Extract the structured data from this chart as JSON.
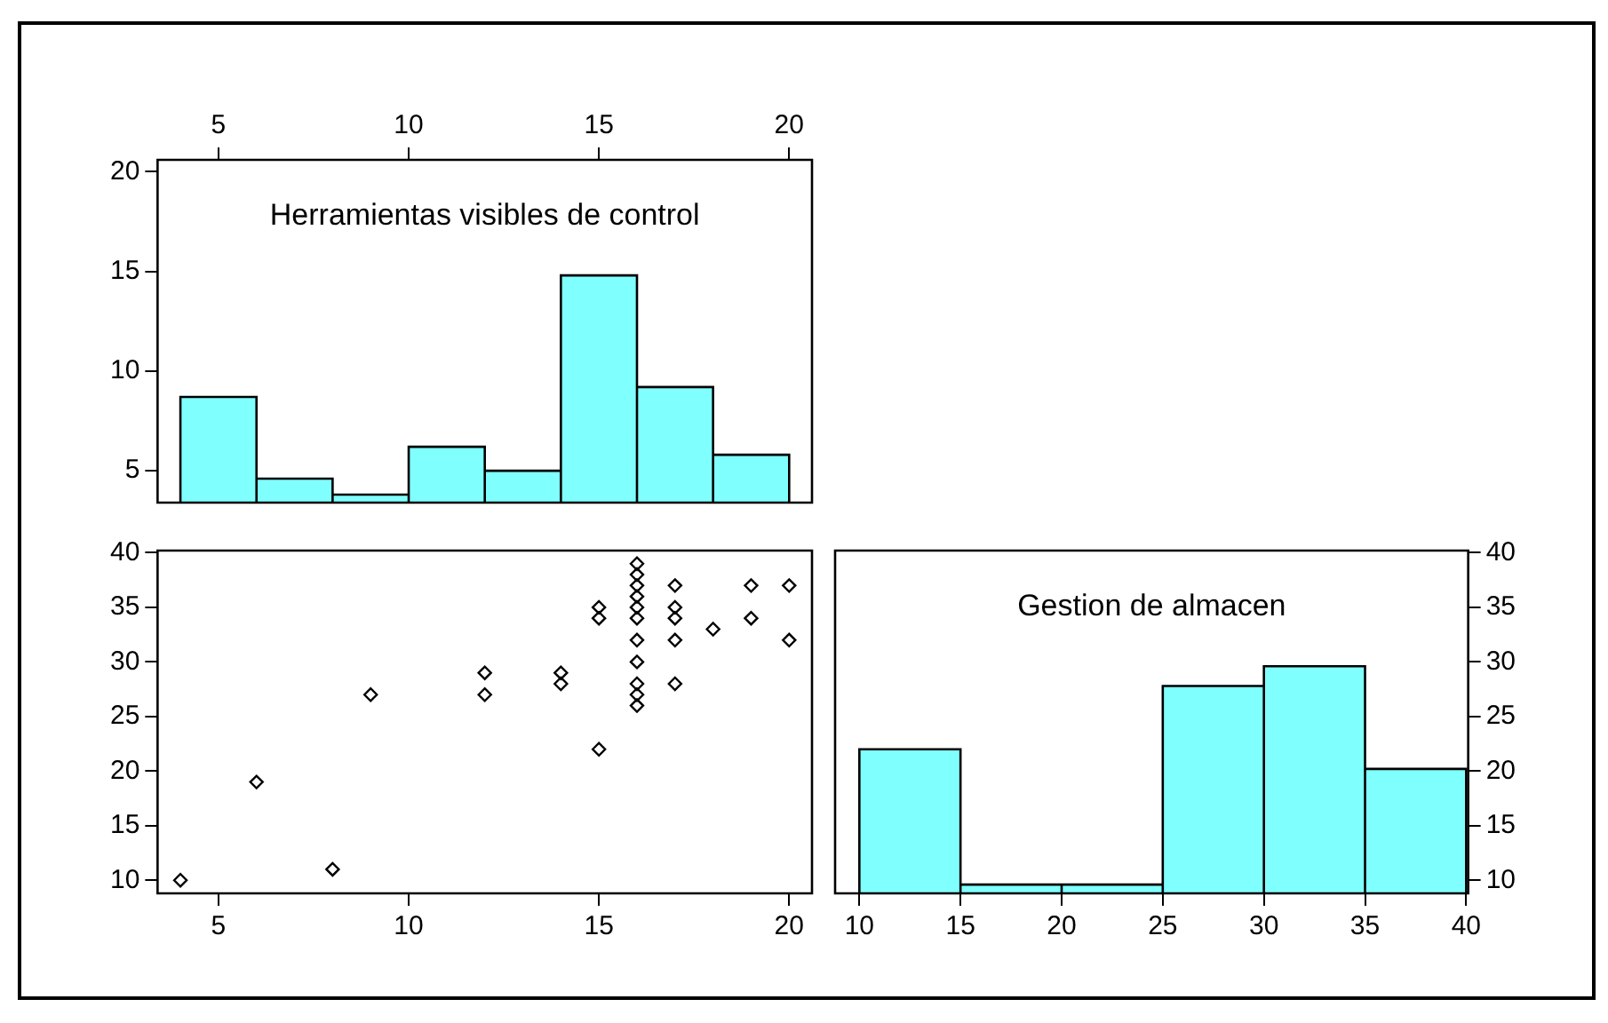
{
  "chart_data": [
    {
      "type": "histogram",
      "title": "Herramientas visibles de control",
      "bins": [
        4,
        6,
        8,
        10,
        12,
        14,
        16,
        18,
        20
      ],
      "values": [
        8.7,
        4.6,
        3.8,
        6.2,
        5.0,
        14.8,
        9.2,
        5.8
      ],
      "color": "#80ffff",
      "xlim": [
        3.4,
        20.6
      ],
      "xticks": [
        5,
        10,
        15,
        20
      ],
      "ylim": [
        3.4,
        20.6
      ],
      "yticks": [
        5,
        10,
        15,
        20
      ],
      "grid": false,
      "legend": false
    },
    {
      "type": "scatter",
      "x": [
        4,
        6,
        8,
        9,
        12,
        12,
        14,
        14,
        15,
        15,
        15,
        16,
        16,
        16,
        16,
        16,
        16,
        16,
        16,
        16,
        16,
        16,
        17,
        17,
        17,
        17,
        17,
        18,
        19,
        19,
        20,
        20
      ],
      "values": [
        10,
        19,
        11,
        27,
        29,
        27,
        29,
        28,
        35,
        34,
        22,
        39,
        38,
        37,
        36,
        35,
        34,
        32,
        30,
        28,
        27,
        26,
        37,
        35,
        34,
        32,
        28,
        33,
        37,
        34,
        37,
        32
      ],
      "color": "#000000",
      "marker": "diamond",
      "xlim": [
        3.4,
        20.6
      ],
      "xticks": [
        5,
        10,
        15,
        20
      ],
      "ylim": [
        8.8,
        40.2
      ],
      "yticks": [
        10,
        15,
        20,
        25,
        30,
        35,
        40
      ],
      "grid": false,
      "legend": false
    },
    {
      "type": "histogram",
      "title": "Gestion de almacen",
      "bins": [
        10,
        15,
        20,
        25,
        30,
        35,
        40
      ],
      "values": [
        22,
        9.6,
        9.6,
        27.8,
        29.6,
        20.2
      ],
      "color": "#80ffff",
      "xlim": [
        8.8,
        40.1
      ],
      "xticks": [
        10,
        15,
        20,
        25,
        30,
        35,
        40
      ],
      "ylim": [
        8.8,
        40.2
      ],
      "yticks": [
        10,
        15,
        20,
        25,
        30,
        35,
        40
      ],
      "grid": false,
      "legend": false
    }
  ]
}
